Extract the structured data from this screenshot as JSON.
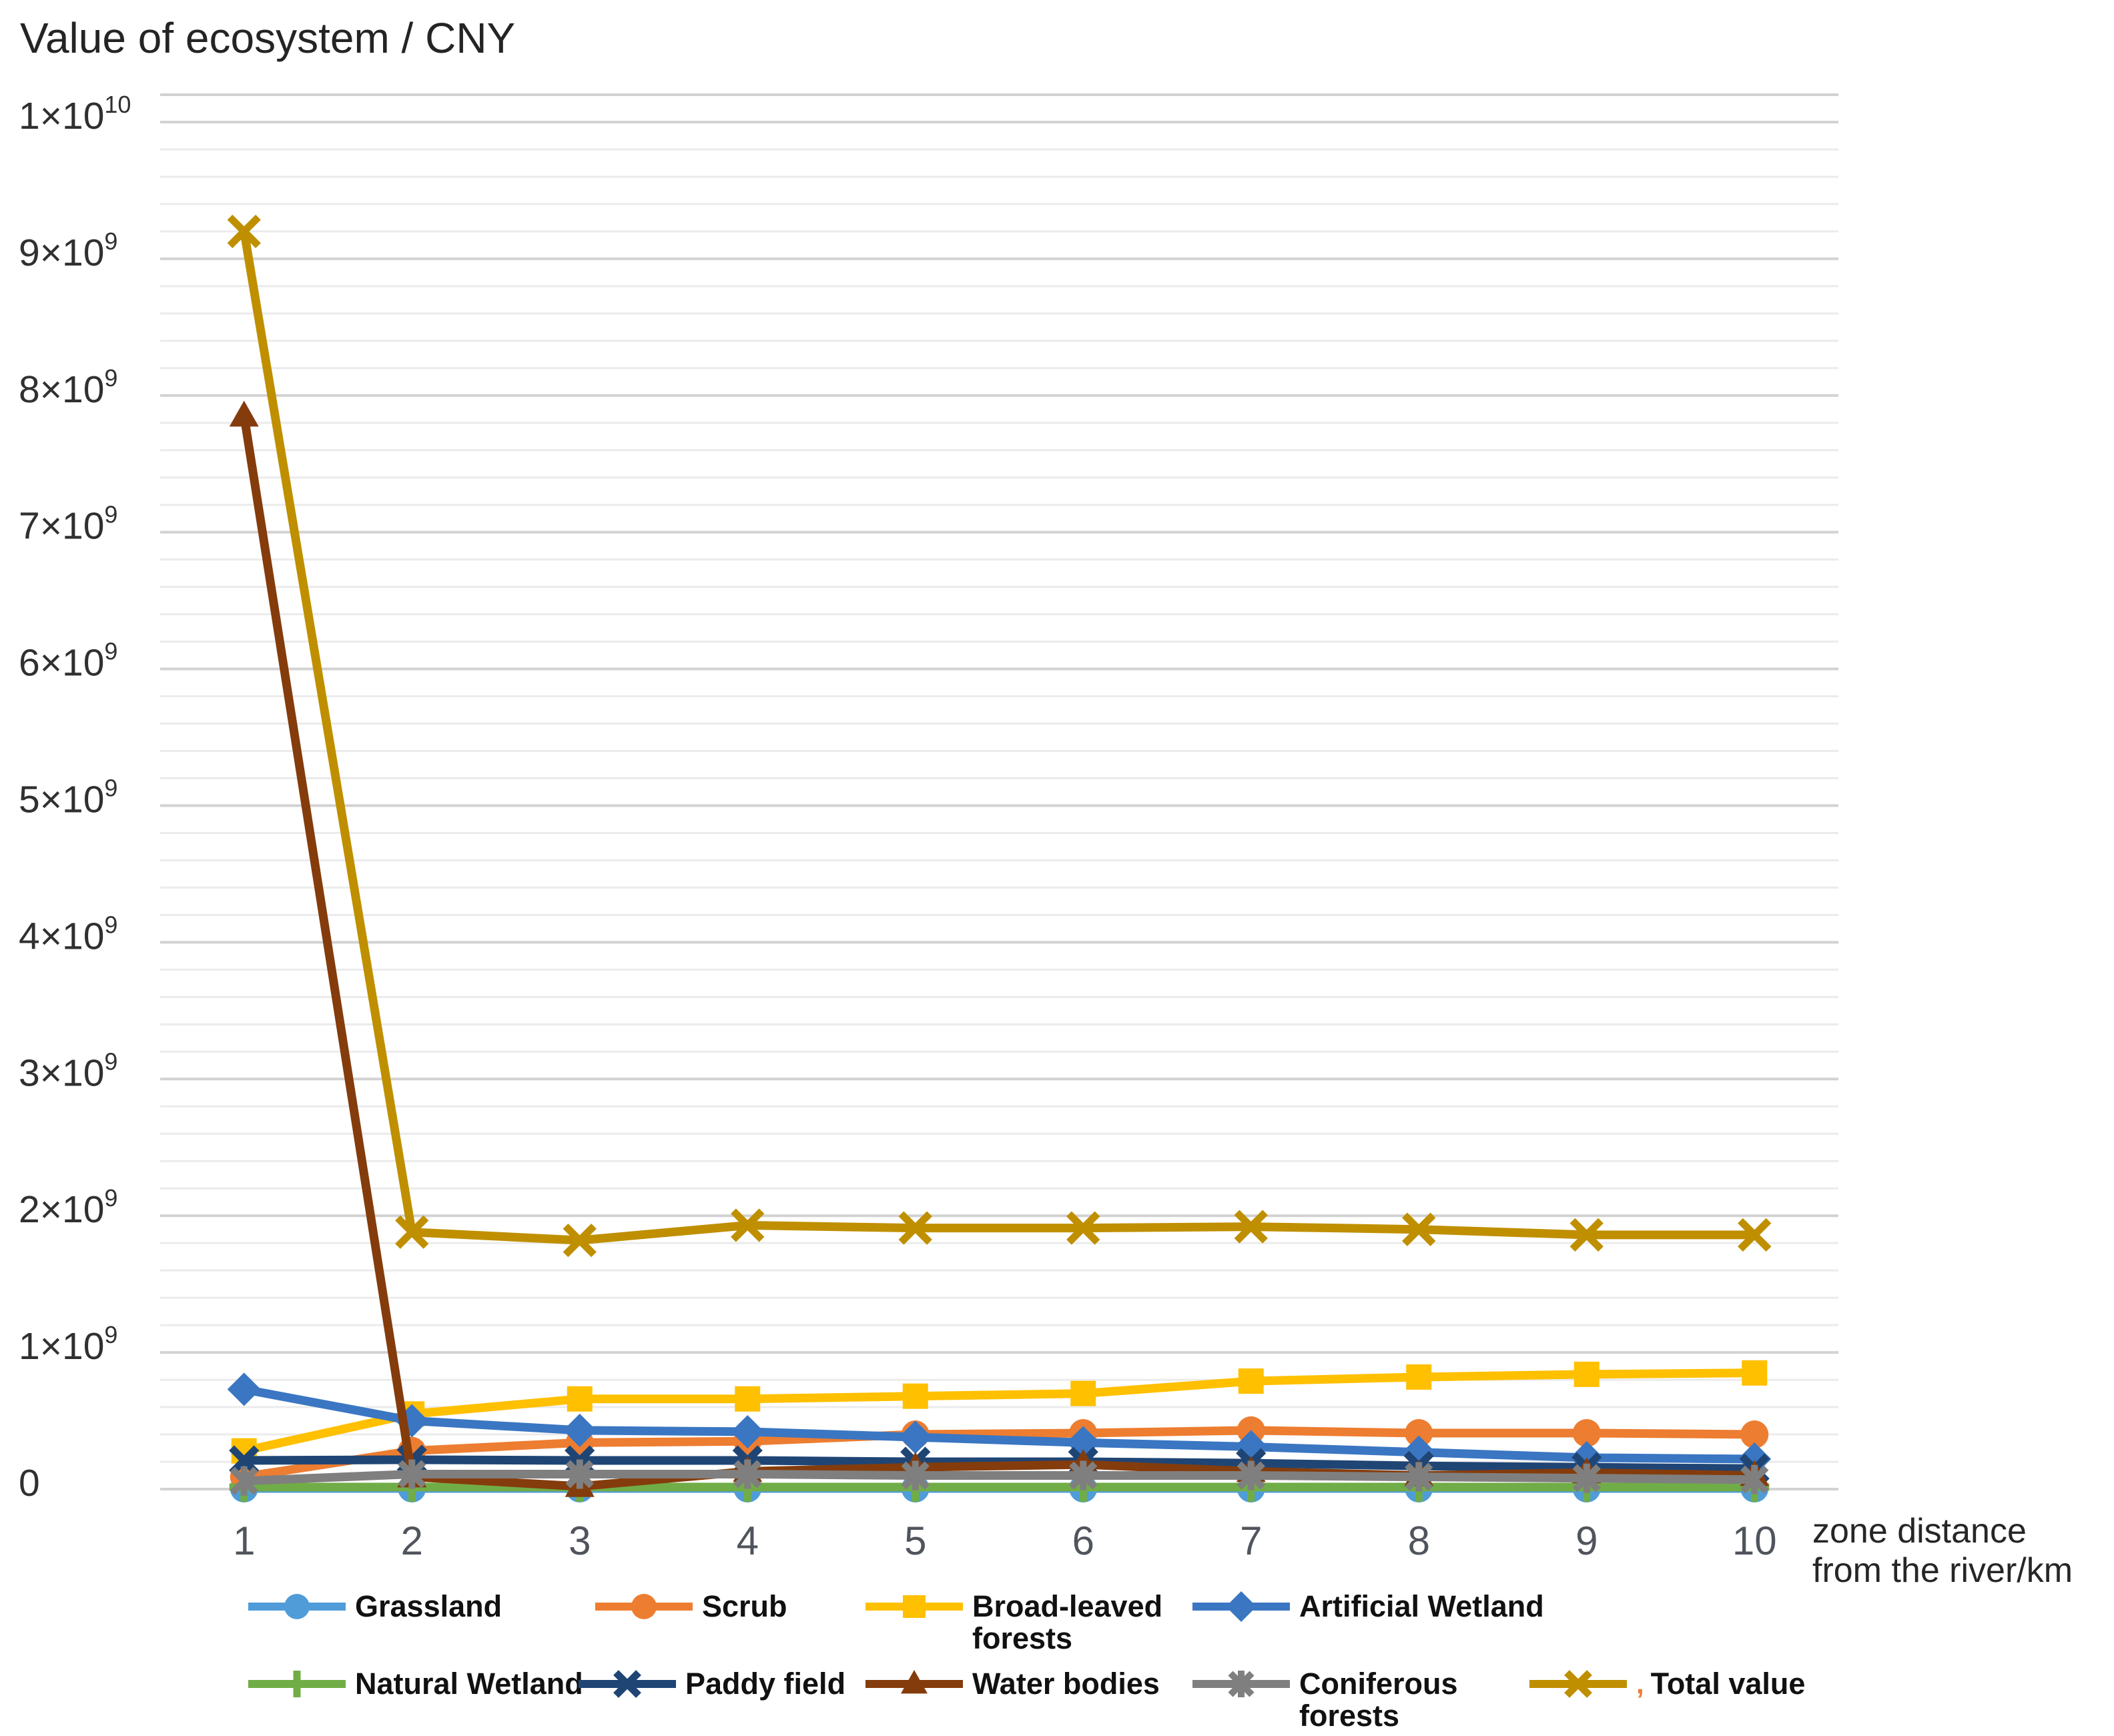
{
  "title": "Value of ecosystem / CNY",
  "x_axis": {
    "label_lines": [
      "zone distance",
      "from the river/km"
    ]
  },
  "chart_data": {
    "type": "line",
    "title": "Value of ecosystem / CNY",
    "xlabel": "zone distance from the river/km",
    "ylabel": "Value of ecosystem / CNY",
    "x": [
      1,
      2,
      3,
      4,
      5,
      6,
      7,
      8,
      9,
      10
    ],
    "ylim": [
      0,
      10200000000
    ],
    "y_major_step": 1000000000,
    "y_minor_step": 200000000,
    "grid": true,
    "legend_position": "bottom",
    "y_ticks": [
      {
        "base": "1×10",
        "sup": "10"
      },
      {
        "base": "9×10",
        "sup": "9"
      },
      {
        "base": "8×10",
        "sup": "9"
      },
      {
        "base": "7×10",
        "sup": "9"
      },
      {
        "base": "6×10",
        "sup": "9"
      },
      {
        "base": "5×10",
        "sup": "9"
      },
      {
        "base": "4×10",
        "sup": "9"
      },
      {
        "base": "3×10",
        "sup": "9"
      },
      {
        "base": "2×10",
        "sup": "9"
      },
      {
        "base": "1×10",
        "sup": "9"
      },
      {
        "base": "0",
        "sup": ""
      }
    ],
    "series": [
      {
        "name": "Grassland",
        "color": "#4F9CD9",
        "marker": "circle",
        "values": [
          5000000,
          5000000,
          5000000,
          5000000,
          5000000,
          5000000,
          5000000,
          5000000,
          5000000,
          5000000
        ]
      },
      {
        "name": "Scrub",
        "color": "#ED7D31",
        "marker": "circle",
        "values": [
          90000000,
          280000000,
          340000000,
          350000000,
          400000000,
          410000000,
          430000000,
          410000000,
          410000000,
          400000000
        ]
      },
      {
        "name": "Broad-leaved forests",
        "legend_label": [
          "Broad-leaved",
          "forests"
        ],
        "color": "#FFC000",
        "marker": "square",
        "values": [
          280000000,
          550000000,
          660000000,
          660000000,
          680000000,
          700000000,
          790000000,
          820000000,
          840000000,
          850000000
        ]
      },
      {
        "name": "Artificial Wetland",
        "color": "#3A76C2",
        "marker": "diamond",
        "values": [
          730000000,
          500000000,
          430000000,
          420000000,
          380000000,
          340000000,
          310000000,
          270000000,
          230000000,
          220000000
        ]
      },
      {
        "name": "Natural Wetland",
        "color": "#70AD47",
        "marker": "plus",
        "values": [
          15000000,
          15000000,
          15000000,
          15000000,
          15000000,
          15000000,
          15000000,
          15000000,
          15000000,
          15000000
        ]
      },
      {
        "name": "Paddy field",
        "color": "#1F4575",
        "marker": "x",
        "values": [
          210000000,
          215000000,
          210000000,
          210000000,
          200000000,
          200000000,
          190000000,
          170000000,
          160000000,
          150000000
        ]
      },
      {
        "name": "Water bodies",
        "color": "#843C0C",
        "marker": "triangle",
        "values": [
          7850000000,
          90000000,
          20000000,
          130000000,
          160000000,
          180000000,
          130000000,
          100000000,
          120000000,
          100000000
        ]
      },
      {
        "name": "Coniferous forests",
        "legend_label": [
          "Coniferous",
          "forests"
        ],
        "color": "#7F7F7F",
        "marker": "asterisk",
        "values": [
          60000000,
          110000000,
          110000000,
          110000000,
          100000000,
          100000000,
          100000000,
          90000000,
          80000000,
          70000000
        ]
      },
      {
        "name": "Total value",
        "legend_prefix": ",",
        "color": "#BF8F00",
        "marker": "x",
        "marker_size": 25,
        "values": [
          9200000000,
          1880000000,
          1820000000,
          1930000000,
          1910000000,
          1910000000,
          1920000000,
          1900000000,
          1860000000,
          1860000000
        ]
      }
    ]
  }
}
